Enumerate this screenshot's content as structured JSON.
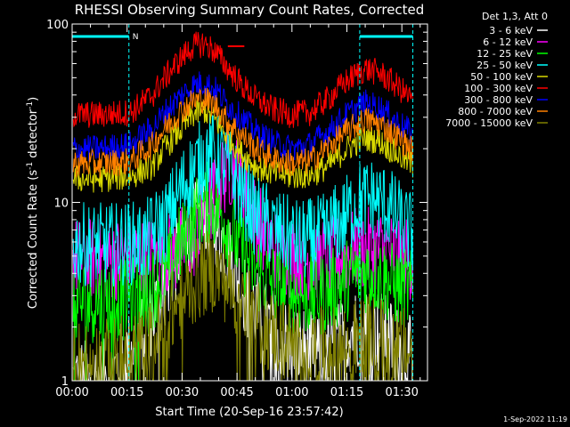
{
  "chart_data": {
    "type": "line",
    "title": "RHESSI Observing Summary Count Rates, Corrected",
    "xlabel": "Start Time (20-Sep-16 23:57:42)",
    "ylabel_main": "Corrected Count Rate (s",
    "ylabel_sup1": "-1",
    "ylabel_mid": " detector",
    "ylabel_sup2": "-1",
    "ylabel_end": ")",
    "yscale": "log",
    "ylim": [
      1,
      100
    ],
    "xlim_minutes": [
      0,
      97
    ],
    "x_ticks": [
      {
        "label": "00:00",
        "min": 0
      },
      {
        "label": "00:15",
        "min": 15
      },
      {
        "label": "00:30",
        "min": 30
      },
      {
        "label": "00:45",
        "min": 45
      },
      {
        "label": "01:00",
        "min": 60
      },
      {
        "label": "01:15",
        "min": 75
      },
      {
        "label": "01:30",
        "min": 90
      }
    ],
    "y_ticks": [
      {
        "label": "1",
        "value": 1
      },
      {
        "label": "10",
        "value": 10
      },
      {
        "label": "100",
        "value": 100
      }
    ],
    "legend_title": "Det 1,3, Att 0",
    "legend_placement": "right",
    "night_marker": "N",
    "bars": [
      {
        "start": 0,
        "end": 15.5,
        "label": "N"
      },
      {
        "start": 78.5,
        "end": 93,
        "label": ""
      }
    ],
    "vertical_markers": [
      15.5,
      78.5,
      93
    ],
    "series": [
      {
        "name": "3 - 6 keV",
        "color": "#ffffff",
        "x": [
          0,
          10,
          14,
          18,
          22,
          26,
          30,
          33,
          36,
          39,
          42,
          45,
          48,
          52,
          56,
          60,
          64,
          68,
          72,
          76,
          80,
          84,
          88,
          93
        ],
        "y": [
          1,
          1,
          1.3,
          1.7,
          2.4,
          3.6,
          5.5,
          7.5,
          8.5,
          7.5,
          5.5,
          3.8,
          2.8,
          2.2,
          1.8,
          1.6,
          1.5,
          1.4,
          1.6,
          1.9,
          2.1,
          1.9,
          1.6,
          1.3
        ]
      },
      {
        "name": "6 - 12 keV",
        "color": "#ff00ff",
        "x": [
          0,
          10,
          20,
          28,
          34,
          38,
          41,
          43,
          46,
          49,
          52,
          56,
          60,
          66,
          72,
          78,
          84,
          90,
          93
        ],
        "y": [
          4.8,
          4.8,
          4.9,
          5.2,
          6.5,
          10,
          14,
          16,
          13,
          9,
          6.8,
          5.3,
          4.9,
          4.8,
          4.9,
          5.5,
          5.4,
          5.0,
          4.8
        ]
      },
      {
        "name": "12 - 25 keV",
        "color": "#00ff00",
        "x": [
          0,
          10,
          20,
          26,
          30,
          34,
          37,
          40,
          43,
          47,
          52,
          58,
          64,
          70,
          76,
          80,
          84,
          88,
          93
        ],
        "y": [
          2.8,
          2.8,
          3.0,
          4.0,
          6.0,
          8.5,
          10,
          9,
          7,
          5,
          3.8,
          3.2,
          3.0,
          3.1,
          3.8,
          4.1,
          3.9,
          3.4,
          3.1
        ]
      },
      {
        "name": "25 - 50 keV",
        "color": "#00ffff",
        "x": [
          0,
          10,
          20,
          26,
          30,
          34,
          37,
          40,
          43,
          46,
          50,
          56,
          62,
          68,
          74,
          78,
          82,
          86,
          90,
          93
        ],
        "y": [
          5.8,
          5.8,
          6.0,
          8,
          12,
          16,
          19,
          18,
          15,
          11.5,
          8.5,
          6.8,
          6.0,
          6.4,
          8.0,
          10,
          10.5,
          9.5,
          7.5,
          6.5
        ]
      },
      {
        "name": "50 - 100 keV",
        "color": "#d9d900",
        "x": [
          0,
          8,
          16,
          22,
          26,
          30,
          33,
          36,
          39,
          42,
          46,
          50,
          55,
          60,
          65,
          70,
          75,
          80,
          84,
          88,
          93
        ],
        "y": [
          13.5,
          13.5,
          14,
          16,
          21,
          26,
          31,
          33,
          29,
          24,
          19,
          16,
          14.5,
          14,
          14.2,
          16,
          20,
          23,
          22,
          19,
          16
        ]
      },
      {
        "name": "100 - 300 keV",
        "color": "#ff0000",
        "x": [
          0,
          8,
          16,
          22,
          26,
          30,
          33,
          36,
          39,
          42,
          46,
          50,
          55,
          60,
          65,
          70,
          75,
          80,
          84,
          88,
          93
        ],
        "y": [
          31,
          31,
          32,
          40,
          52,
          65,
          75,
          78,
          70,
          58,
          46,
          38,
          33,
          31,
          32,
          38,
          48,
          56,
          53,
          46,
          37
        ]
      },
      {
        "name": "300 - 800 keV",
        "color": "#0000ff",
        "x": [
          0,
          8,
          16,
          22,
          26,
          30,
          33,
          36,
          39,
          42,
          46,
          50,
          55,
          60,
          65,
          70,
          75,
          80,
          84,
          88,
          93
        ],
        "y": [
          20,
          20,
          21,
          26,
          33,
          40,
          45,
          47,
          43,
          36,
          30,
          25,
          21.5,
          20,
          21,
          25,
          31,
          36,
          34,
          29,
          24
        ]
      },
      {
        "name": "800 - 7000 keV",
        "color": "#ff8000",
        "x": [
          0,
          8,
          16,
          22,
          26,
          30,
          33,
          36,
          39,
          42,
          46,
          50,
          55,
          60,
          65,
          70,
          75,
          80,
          84,
          88,
          93
        ],
        "y": [
          16.5,
          16.5,
          17,
          21,
          27,
          33,
          37,
          38,
          35,
          29,
          24,
          20,
          17.5,
          16.5,
          17,
          20.5,
          25,
          29,
          27.5,
          24,
          19.5
        ]
      },
      {
        "name": "7000 - 15000 keV",
        "color": "#808000",
        "x": [
          0,
          10,
          20,
          25,
          30,
          35,
          38,
          41,
          44,
          48,
          52,
          58,
          64,
          70,
          76,
          80,
          84,
          88,
          93
        ],
        "y": [
          1.3,
          1.3,
          1.5,
          2.0,
          2.9,
          3.8,
          4.2,
          3.8,
          3.1,
          2.5,
          2.0,
          1.7,
          1.5,
          1.5,
          1.6,
          1.8,
          1.7,
          1.6,
          1.4
        ]
      }
    ],
    "short_red_marker": {
      "start": 42.5,
      "end": 47,
      "y": 75
    }
  },
  "footer": {
    "timestamp": "1-Sep-2022 11:19"
  }
}
